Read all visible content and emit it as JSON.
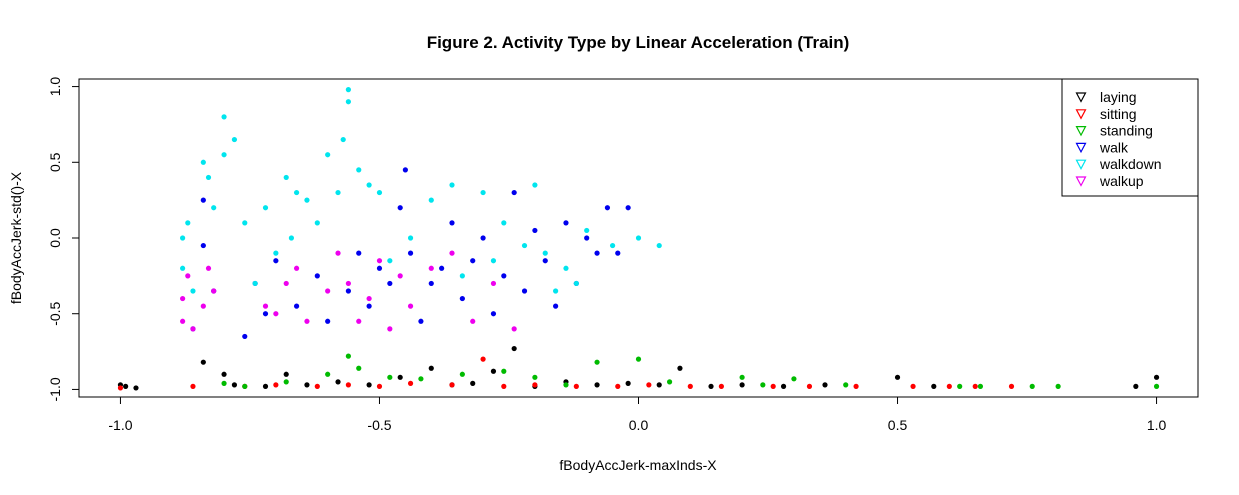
{
  "chart_data": {
    "type": "scatter",
    "title": "Figure 2. Activity Type by Linear Acceleration (Train)",
    "xlabel": "fBodyAccJerk-maxInds-X",
    "ylabel": "fBodyAccJerk-std()-X",
    "xlim": [
      -1.08,
      1.08
    ],
    "ylim": [
      -1.05,
      1.05
    ],
    "x_ticks": [
      -1.0,
      -0.5,
      0.0,
      0.5,
      1.0
    ],
    "x_tick_labels": [
      "-1.0",
      "-0.5",
      "0.0",
      "0.5",
      "1.0"
    ],
    "y_ticks": [
      -1.0,
      -0.5,
      0.0,
      0.5,
      1.0
    ],
    "y_tick_labels": [
      "-1.0",
      "-0.5",
      "0.0",
      "0.5",
      "1.0"
    ],
    "grid": false,
    "legend_position": "top-right",
    "series": [
      {
        "name": "laying",
        "color": "#000000",
        "points": [
          [
            -1.0,
            -0.97
          ],
          [
            -0.99,
            -0.98
          ],
          [
            -0.97,
            -0.99
          ],
          [
            -0.84,
            -0.82
          ],
          [
            -0.8,
            -0.9
          ],
          [
            -0.78,
            -0.97
          ],
          [
            -0.72,
            -0.98
          ],
          [
            -0.68,
            -0.9
          ],
          [
            -0.64,
            -0.97
          ],
          [
            -0.58,
            -0.95
          ],
          [
            -0.52,
            -0.97
          ],
          [
            -0.46,
            -0.92
          ],
          [
            -0.4,
            -0.86
          ],
          [
            -0.36,
            -0.97
          ],
          [
            -0.32,
            -0.96
          ],
          [
            -0.28,
            -0.88
          ],
          [
            -0.24,
            -0.73
          ],
          [
            -0.2,
            -0.98
          ],
          [
            -0.14,
            -0.95
          ],
          [
            -0.08,
            -0.97
          ],
          [
            -0.02,
            -0.96
          ],
          [
            0.04,
            -0.97
          ],
          [
            0.08,
            -0.86
          ],
          [
            0.14,
            -0.98
          ],
          [
            0.2,
            -0.97
          ],
          [
            0.28,
            -0.98
          ],
          [
            0.36,
            -0.97
          ],
          [
            0.5,
            -0.92
          ],
          [
            0.57,
            -0.98
          ],
          [
            0.96,
            -0.98
          ],
          [
            1.0,
            -0.92
          ]
        ]
      },
      {
        "name": "sitting",
        "color": "#ff0000",
        "points": [
          [
            -1.0,
            -0.99
          ],
          [
            -0.86,
            -0.98
          ],
          [
            -0.76,
            -0.98
          ],
          [
            -0.7,
            -0.97
          ],
          [
            -0.62,
            -0.98
          ],
          [
            -0.56,
            -0.97
          ],
          [
            -0.5,
            -0.98
          ],
          [
            -0.44,
            -0.96
          ],
          [
            -0.36,
            -0.97
          ],
          [
            -0.3,
            -0.8
          ],
          [
            -0.26,
            -0.98
          ],
          [
            -0.2,
            -0.97
          ],
          [
            -0.12,
            -0.98
          ],
          [
            -0.04,
            -0.98
          ],
          [
            0.02,
            -0.97
          ],
          [
            0.1,
            -0.98
          ],
          [
            0.16,
            -0.98
          ],
          [
            0.26,
            -0.98
          ],
          [
            0.33,
            -0.98
          ],
          [
            0.42,
            -0.98
          ],
          [
            0.53,
            -0.98
          ],
          [
            0.6,
            -0.98
          ],
          [
            0.65,
            -0.98
          ],
          [
            0.72,
            -0.98
          ]
        ]
      },
      {
        "name": "standing",
        "color": "#00bb00",
        "points": [
          [
            -0.8,
            -0.96
          ],
          [
            -0.76,
            -0.98
          ],
          [
            -0.68,
            -0.95
          ],
          [
            -0.6,
            -0.9
          ],
          [
            -0.56,
            -0.78
          ],
          [
            -0.54,
            -0.86
          ],
          [
            -0.48,
            -0.92
          ],
          [
            -0.42,
            -0.93
          ],
          [
            -0.34,
            -0.9
          ],
          [
            -0.26,
            -0.88
          ],
          [
            -0.2,
            -0.92
          ],
          [
            -0.14,
            -0.97
          ],
          [
            -0.08,
            -0.82
          ],
          [
            0.0,
            -0.8
          ],
          [
            0.06,
            -0.95
          ],
          [
            0.2,
            -0.92
          ],
          [
            0.24,
            -0.97
          ],
          [
            0.3,
            -0.93
          ],
          [
            0.4,
            -0.97
          ],
          [
            0.62,
            -0.98
          ],
          [
            0.66,
            -0.98
          ],
          [
            0.76,
            -0.98
          ],
          [
            0.81,
            -0.98
          ],
          [
            1.0,
            -0.98
          ]
        ]
      },
      {
        "name": "walk",
        "color": "#0000ee",
        "points": [
          [
            -0.86,
            -0.6
          ],
          [
            -0.84,
            0.25
          ],
          [
            -0.84,
            -0.05
          ],
          [
            -0.82,
            -0.35
          ],
          [
            -0.76,
            -0.65
          ],
          [
            -0.74,
            -0.3
          ],
          [
            -0.72,
            -0.5
          ],
          [
            -0.7,
            -0.15
          ],
          [
            -0.66,
            -0.45
          ],
          [
            -0.62,
            -0.25
          ],
          [
            -0.6,
            -0.55
          ],
          [
            -0.56,
            -0.35
          ],
          [
            -0.54,
            -0.1
          ],
          [
            -0.52,
            -0.45
          ],
          [
            -0.5,
            -0.2
          ],
          [
            -0.48,
            -0.3
          ],
          [
            -0.46,
            0.2
          ],
          [
            -0.45,
            0.45
          ],
          [
            -0.44,
            -0.1
          ],
          [
            -0.42,
            -0.55
          ],
          [
            -0.4,
            -0.3
          ],
          [
            -0.38,
            -0.2
          ],
          [
            -0.36,
            0.1
          ],
          [
            -0.34,
            -0.4
          ],
          [
            -0.32,
            -0.15
          ],
          [
            -0.3,
            0.0
          ],
          [
            -0.28,
            -0.5
          ],
          [
            -0.26,
            -0.25
          ],
          [
            -0.24,
            0.3
          ],
          [
            -0.22,
            -0.35
          ],
          [
            -0.2,
            0.05
          ],
          [
            -0.18,
            -0.15
          ],
          [
            -0.16,
            -0.45
          ],
          [
            -0.14,
            0.1
          ],
          [
            -0.12,
            -0.3
          ],
          [
            -0.1,
            0.0
          ],
          [
            -0.08,
            -0.1
          ],
          [
            -0.06,
            0.2
          ],
          [
            -0.04,
            -0.1
          ],
          [
            -0.02,
            0.2
          ]
        ]
      },
      {
        "name": "walkdown",
        "color": "#00e5ee",
        "points": [
          [
            -0.88,
            0.0
          ],
          [
            -0.88,
            -0.2
          ],
          [
            -0.87,
            0.1
          ],
          [
            -0.86,
            -0.35
          ],
          [
            -0.84,
            0.5
          ],
          [
            -0.83,
            0.4
          ],
          [
            -0.82,
            0.2
          ],
          [
            -0.8,
            0.8
          ],
          [
            -0.8,
            0.55
          ],
          [
            -0.78,
            0.65
          ],
          [
            -0.76,
            0.1
          ],
          [
            -0.74,
            -0.3
          ],
          [
            -0.72,
            0.2
          ],
          [
            -0.7,
            -0.1
          ],
          [
            -0.68,
            0.4
          ],
          [
            -0.67,
            0.0
          ],
          [
            -0.66,
            0.3
          ],
          [
            -0.64,
            0.25
          ],
          [
            -0.62,
            0.1
          ],
          [
            -0.6,
            0.55
          ],
          [
            -0.58,
            0.3
          ],
          [
            -0.57,
            0.65
          ],
          [
            -0.56,
            0.98
          ],
          [
            -0.56,
            0.9
          ],
          [
            -0.54,
            0.45
          ],
          [
            -0.52,
            0.35
          ],
          [
            -0.5,
            0.3
          ],
          [
            -0.48,
            -0.15
          ],
          [
            -0.44,
            0.0
          ],
          [
            -0.4,
            0.25
          ],
          [
            -0.36,
            0.35
          ],
          [
            -0.34,
            -0.25
          ],
          [
            -0.3,
            0.3
          ],
          [
            -0.28,
            -0.15
          ],
          [
            -0.26,
            0.1
          ],
          [
            -0.22,
            -0.05
          ],
          [
            -0.2,
            0.35
          ],
          [
            -0.18,
            -0.1
          ],
          [
            -0.16,
            -0.35
          ],
          [
            -0.14,
            -0.2
          ],
          [
            -0.12,
            -0.3
          ],
          [
            -0.1,
            0.05
          ],
          [
            -0.05,
            -0.05
          ],
          [
            0.0,
            0.0
          ],
          [
            0.04,
            -0.05
          ]
        ]
      },
      {
        "name": "walkup",
        "color": "#ee00ee",
        "points": [
          [
            -0.88,
            -0.55
          ],
          [
            -0.88,
            -0.4
          ],
          [
            -0.87,
            -0.25
          ],
          [
            -0.86,
            -0.6
          ],
          [
            -0.84,
            -0.45
          ],
          [
            -0.83,
            -0.2
          ],
          [
            -0.82,
            -0.35
          ],
          [
            -0.72,
            -0.45
          ],
          [
            -0.7,
            -0.5
          ],
          [
            -0.68,
            -0.3
          ],
          [
            -0.66,
            -0.2
          ],
          [
            -0.64,
            -0.55
          ],
          [
            -0.6,
            -0.35
          ],
          [
            -0.58,
            -0.1
          ],
          [
            -0.56,
            -0.3
          ],
          [
            -0.54,
            -0.55
          ],
          [
            -0.52,
            -0.4
          ],
          [
            -0.5,
            -0.15
          ],
          [
            -0.48,
            -0.6
          ],
          [
            -0.46,
            -0.25
          ],
          [
            -0.44,
            -0.45
          ],
          [
            -0.4,
            -0.2
          ],
          [
            -0.36,
            -0.1
          ],
          [
            -0.32,
            -0.55
          ],
          [
            -0.28,
            -0.3
          ],
          [
            -0.24,
            -0.6
          ]
        ]
      }
    ]
  }
}
